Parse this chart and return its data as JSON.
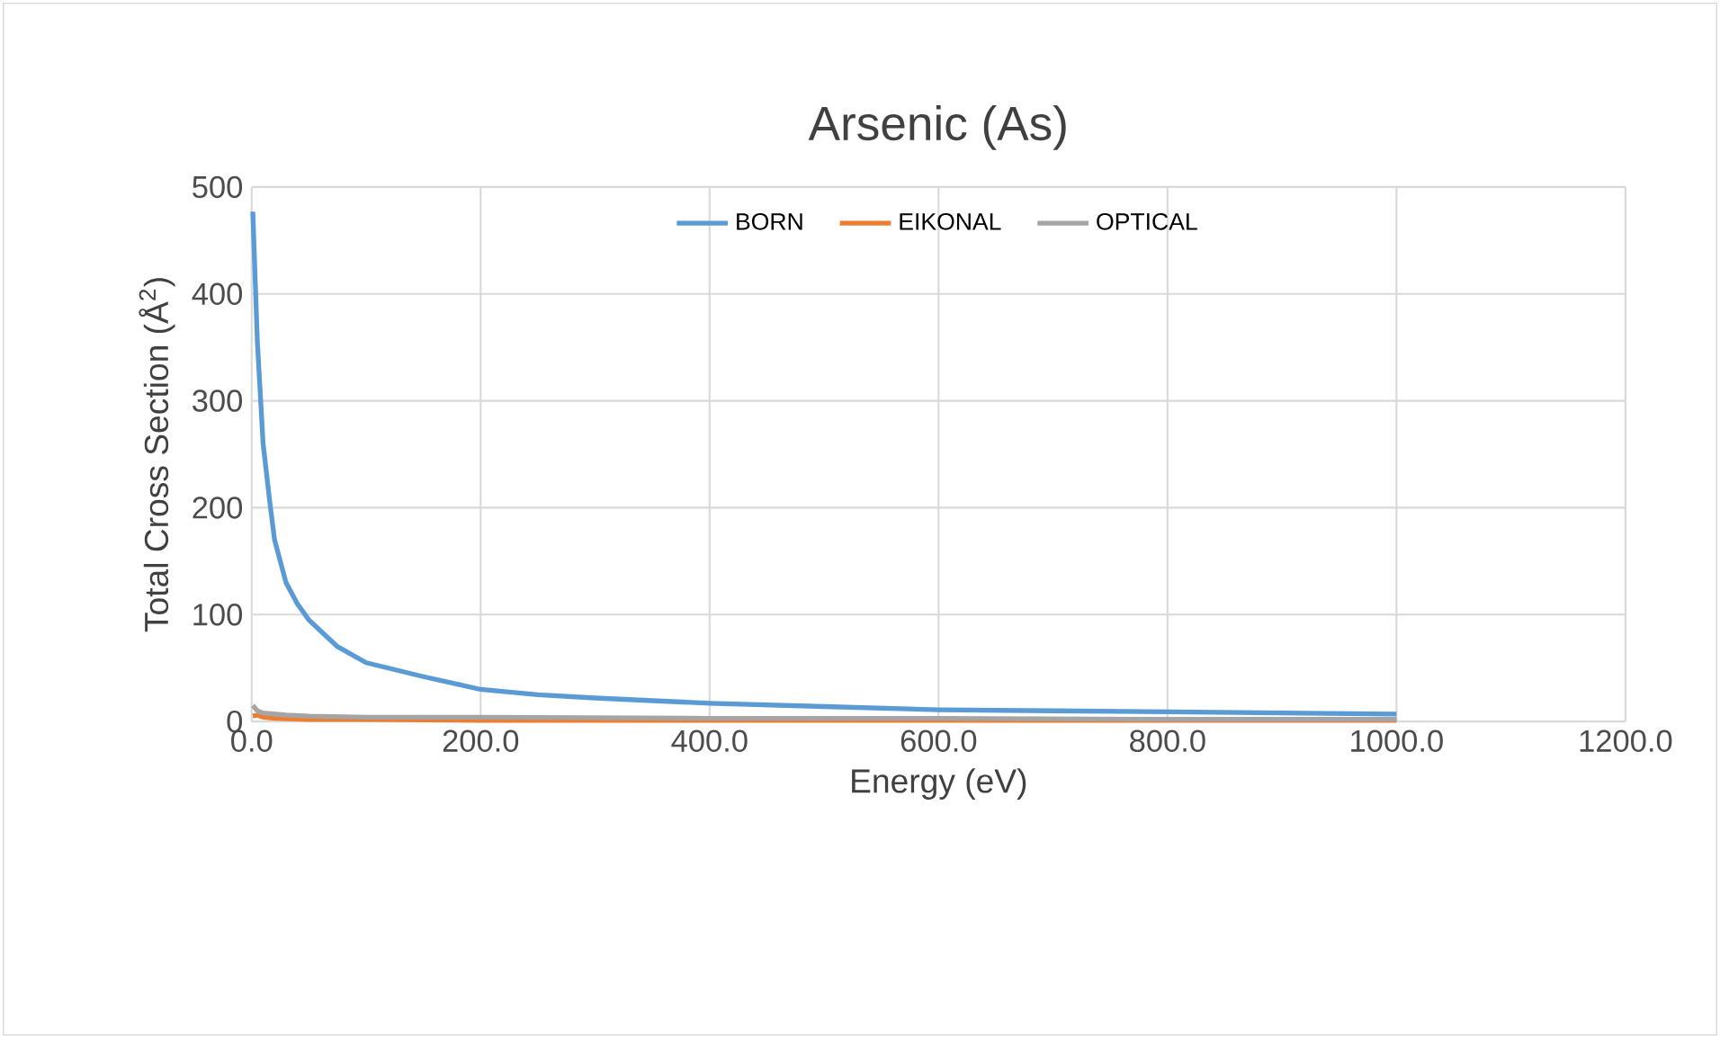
{
  "chart_data": {
    "type": "line",
    "title": "Arsenic (As)",
    "xlabel": "Energy (eV)",
    "ylabel": "Total Cross Section (Å$^{2}$)",
    "xlim": [
      0,
      1200
    ],
    "ylim": [
      0,
      500
    ],
    "xticks": [
      {
        "value": 0,
        "label": "0.0"
      },
      {
        "value": 200,
        "label": "200.0"
      },
      {
        "value": 400,
        "label": "400.0"
      },
      {
        "value": 600,
        "label": "600.0"
      },
      {
        "value": 800,
        "label": "800.0"
      },
      {
        "value": 1000,
        "label": "1000.0"
      },
      {
        "value": 1200,
        "label": "1200.0"
      }
    ],
    "yticks": [
      0,
      100,
      200,
      300,
      400,
      500
    ],
    "grid": true,
    "legend": "top",
    "marker": "none",
    "line_style": "solid",
    "series": [
      {
        "name": "BORN",
        "color": "#5b9bd5",
        "x": [
          1,
          5,
          10,
          16,
          20,
          30,
          40,
          50,
          75,
          100,
          150,
          200,
          250,
          300,
          400,
          500,
          600,
          700,
          800,
          900,
          1000
        ],
        "values": [
          477,
          355,
          260,
          204,
          170,
          130,
          110,
          95,
          70,
          55,
          42,
          30,
          25,
          22,
          17,
          14,
          11,
          10,
          9,
          8,
          7
        ]
      },
      {
        "name": "EIKONAL",
        "color": "#ed7d31",
        "x": [
          1,
          5,
          10,
          20,
          50,
          100,
          200,
          400,
          600,
          800,
          1000
        ],
        "values": [
          5,
          6,
          4,
          3,
          2,
          2,
          1,
          1,
          1,
          1,
          1
        ]
      },
      {
        "name": "OPTICAL",
        "color": "#a5a5a5",
        "x": [
          1,
          5,
          10,
          30,
          50,
          100,
          200,
          400,
          600,
          800,
          1000
        ],
        "values": [
          15,
          10,
          8,
          6,
          5,
          4,
          4,
          3,
          3,
          2,
          2
        ]
      }
    ]
  }
}
